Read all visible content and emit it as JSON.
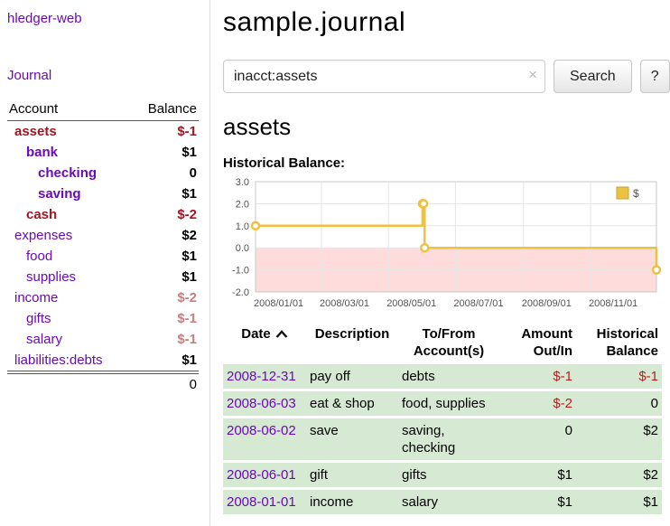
{
  "palette": {
    "link": "#6a0ab8",
    "negative": "#a01622",
    "negative_soft": "#c57f7f",
    "negative_table": "#b22222",
    "text": "#000000",
    "row_green": "#d6e9d2",
    "chart_line": "#edc240",
    "chart_negative_fill": "#ffdcdc"
  },
  "app": {
    "title": "hledger-web"
  },
  "sidebar": {
    "journal_link": "Journal",
    "header": {
      "account": "Account",
      "balance": "Balance"
    },
    "accounts": [
      {
        "name": "assets",
        "depth": 0,
        "bold": true,
        "name_color": "negative",
        "balance": "$-1",
        "balance_color": "negative"
      },
      {
        "name": "bank",
        "depth": 1,
        "bold": true,
        "name_color": "link",
        "balance": "$1",
        "balance_color": "text"
      },
      {
        "name": "checking",
        "depth": 2,
        "bold": true,
        "name_color": "link",
        "balance": "0",
        "balance_color": "text"
      },
      {
        "name": "saving",
        "depth": 2,
        "bold": true,
        "name_color": "link",
        "balance": "$1",
        "balance_color": "text"
      },
      {
        "name": "cash",
        "depth": 1,
        "bold": true,
        "name_color": "negative",
        "balance": "$-2",
        "balance_color": "negative"
      },
      {
        "name": "expenses",
        "depth": 0,
        "bold": false,
        "name_color": "link",
        "balance": "$2",
        "balance_color": "text"
      },
      {
        "name": "food",
        "depth": 1,
        "bold": false,
        "name_color": "link",
        "balance": "$1",
        "balance_color": "text"
      },
      {
        "name": "supplies",
        "depth": 1,
        "bold": false,
        "name_color": "link",
        "balance": "$1",
        "balance_color": "text"
      },
      {
        "name": "income",
        "depth": 0,
        "bold": false,
        "name_color": "link",
        "balance": "$-2",
        "balance_color": "negative_soft"
      },
      {
        "name": "gifts",
        "depth": 1,
        "bold": false,
        "name_color": "link",
        "balance": "$-1",
        "balance_color": "negative_soft"
      },
      {
        "name": "salary",
        "depth": 1,
        "bold": false,
        "name_color": "link",
        "balance": "$-1",
        "balance_color": "negative_soft"
      },
      {
        "name": "liabilities:debts",
        "depth": 0,
        "bold": false,
        "name_color": "link",
        "balance": "$1",
        "balance_color": "text"
      }
    ],
    "total": "0"
  },
  "main": {
    "title": "sample.journal",
    "search": {
      "value": "inacct:assets",
      "clear_icon": "×",
      "button_label": "Search",
      "help_label": "?"
    },
    "account_heading": "assets",
    "chart_label": "Historical Balance:"
  },
  "chart_data": {
    "type": "line",
    "step": true,
    "title": "Historical Balance:",
    "series": [
      {
        "name": "$",
        "color": "#edc240",
        "points": [
          [
            "2008-01-01",
            1.0
          ],
          [
            "2008-06-01",
            2.0
          ],
          [
            "2008-06-02",
            2.0
          ],
          [
            "2008-06-03",
            0.0
          ],
          [
            "2008-12-31",
            -1.0
          ]
        ]
      }
    ],
    "xlim": [
      "2008-01-01",
      "2008-12-31"
    ],
    "ylim": [
      -2.0,
      3.0
    ],
    "yticks": [
      "3.0",
      "2.0",
      "1.0",
      "0.0",
      "-1.0",
      "-2.0"
    ],
    "xticks": [
      {
        "date": "2008-01-01",
        "label": "2008/01/01"
      },
      {
        "date": "2008-03-01",
        "label": "2008/03/01"
      },
      {
        "date": "2008-05-01",
        "label": "2008/05/01"
      },
      {
        "date": "2008-07-01",
        "label": "2008/07/01"
      },
      {
        "date": "2008-09-01",
        "label": "2008/09/01"
      },
      {
        "date": "2008-11-01",
        "label": "2008/11/01"
      }
    ],
    "negative_region": {
      "below": 0,
      "color": "#ffdcdc"
    },
    "legend": {
      "label": "$",
      "position": "top-right"
    },
    "grid": true
  },
  "register": {
    "columns": [
      {
        "label": "Date",
        "sort": "asc",
        "align": "left"
      },
      {
        "label": "Description",
        "align": "left"
      },
      {
        "label": "To/From Account(s)",
        "align": "left"
      },
      {
        "label": "Amount Out/In",
        "align": "right"
      },
      {
        "label": "Historical Balance",
        "align": "right"
      }
    ],
    "rows": [
      {
        "date": "2008-12-31",
        "description": "pay off",
        "accounts": "debts",
        "amount": "$-1",
        "amount_neg": true,
        "balance": "$-1",
        "balance_neg": true
      },
      {
        "date": "2008-06-03",
        "description": "eat & shop",
        "accounts": "food, supplies",
        "amount": "$-2",
        "amount_neg": true,
        "balance": "0",
        "balance_neg": false
      },
      {
        "date": "2008-06-02",
        "description": "save",
        "accounts": "saving, checking",
        "amount": "0",
        "amount_neg": false,
        "balance": "$2",
        "balance_neg": false
      },
      {
        "date": "2008-06-01",
        "description": "gift",
        "accounts": "gifts",
        "amount": "$1",
        "amount_neg": false,
        "balance": "$2",
        "balance_neg": false
      },
      {
        "date": "2008-01-01",
        "description": "income",
        "accounts": "salary",
        "amount": "$1",
        "amount_neg": false,
        "balance": "$1",
        "balance_neg": false
      }
    ]
  }
}
